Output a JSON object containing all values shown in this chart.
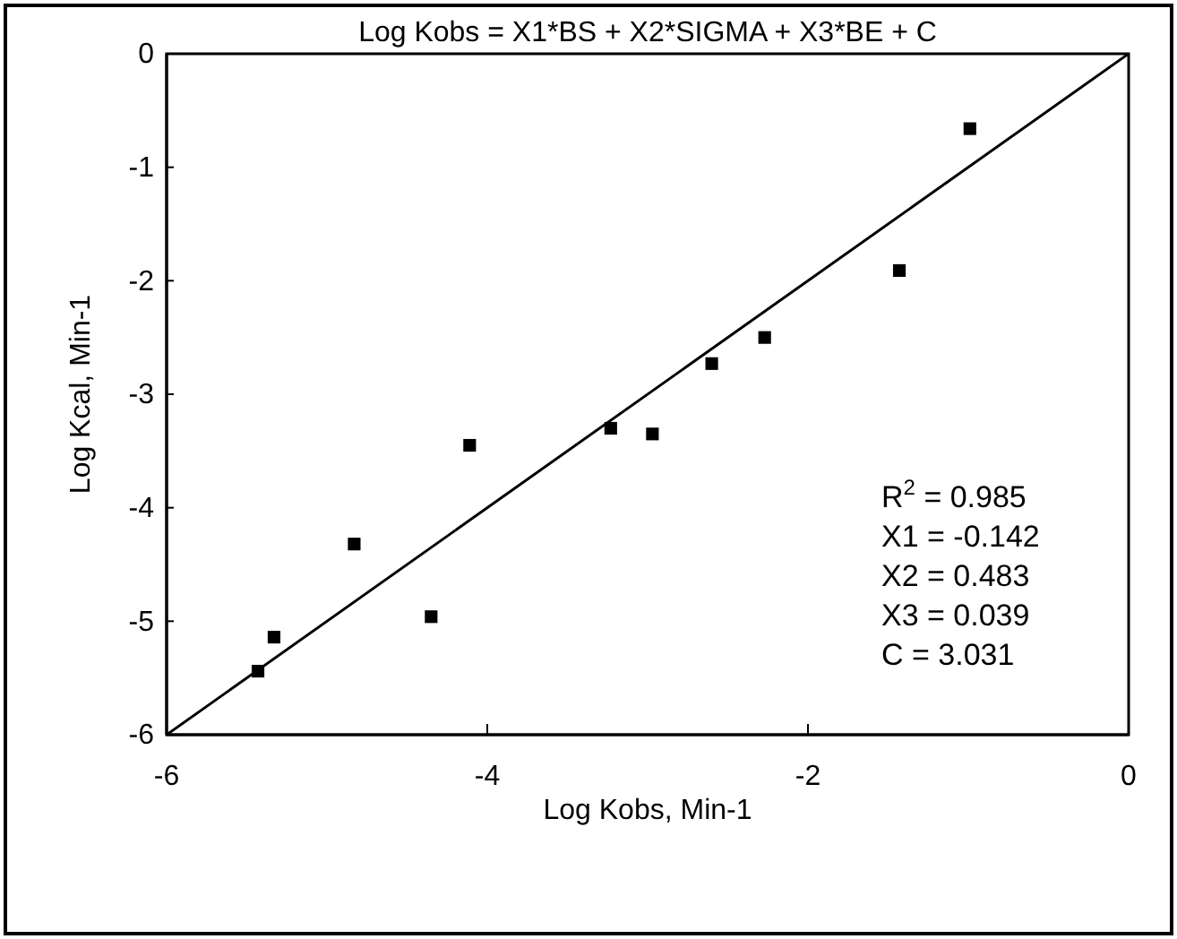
{
  "chart_data": {
    "type": "scatter",
    "title": "Log Kobs = X1*BS + X2*SIGMA + X3*BE + C",
    "xlabel": "Log Kobs, Min-1",
    "ylabel": "Log Kcal, Min-1",
    "xlim": [
      -6,
      0
    ],
    "xticks": [
      -6,
      -4,
      -2,
      0
    ],
    "ylim": [
      -6,
      0
    ],
    "yticks": [
      0,
      -1,
      -2,
      -3,
      -4,
      -5,
      -6
    ],
    "grid": false,
    "series": [
      {
        "color": "#000000",
        "marker": "square",
        "x": [
          -5.43,
          -5.33,
          -4.83,
          -4.35,
          -4.11,
          -3.23,
          -2.97,
          -2.6,
          -2.27,
          -1.43,
          -0.99
        ],
        "values": [
          -5.44,
          -5.14,
          -4.32,
          -4.96,
          -3.45,
          -3.3,
          -3.35,
          -2.73,
          -2.5,
          -1.91,
          -0.66
        ]
      },
      {
        "type": "line",
        "color": "#000000",
        "x": [
          -6,
          0
        ],
        "values": [
          -6,
          0
        ],
        "line_style": "solid"
      }
    ],
    "annotations": [
      "R$^{2}$ = 0.985",
      "X1 = -0.142",
      "X2 = 0.483",
      "X3 = 0.039",
      "C = 3.031"
    ]
  }
}
